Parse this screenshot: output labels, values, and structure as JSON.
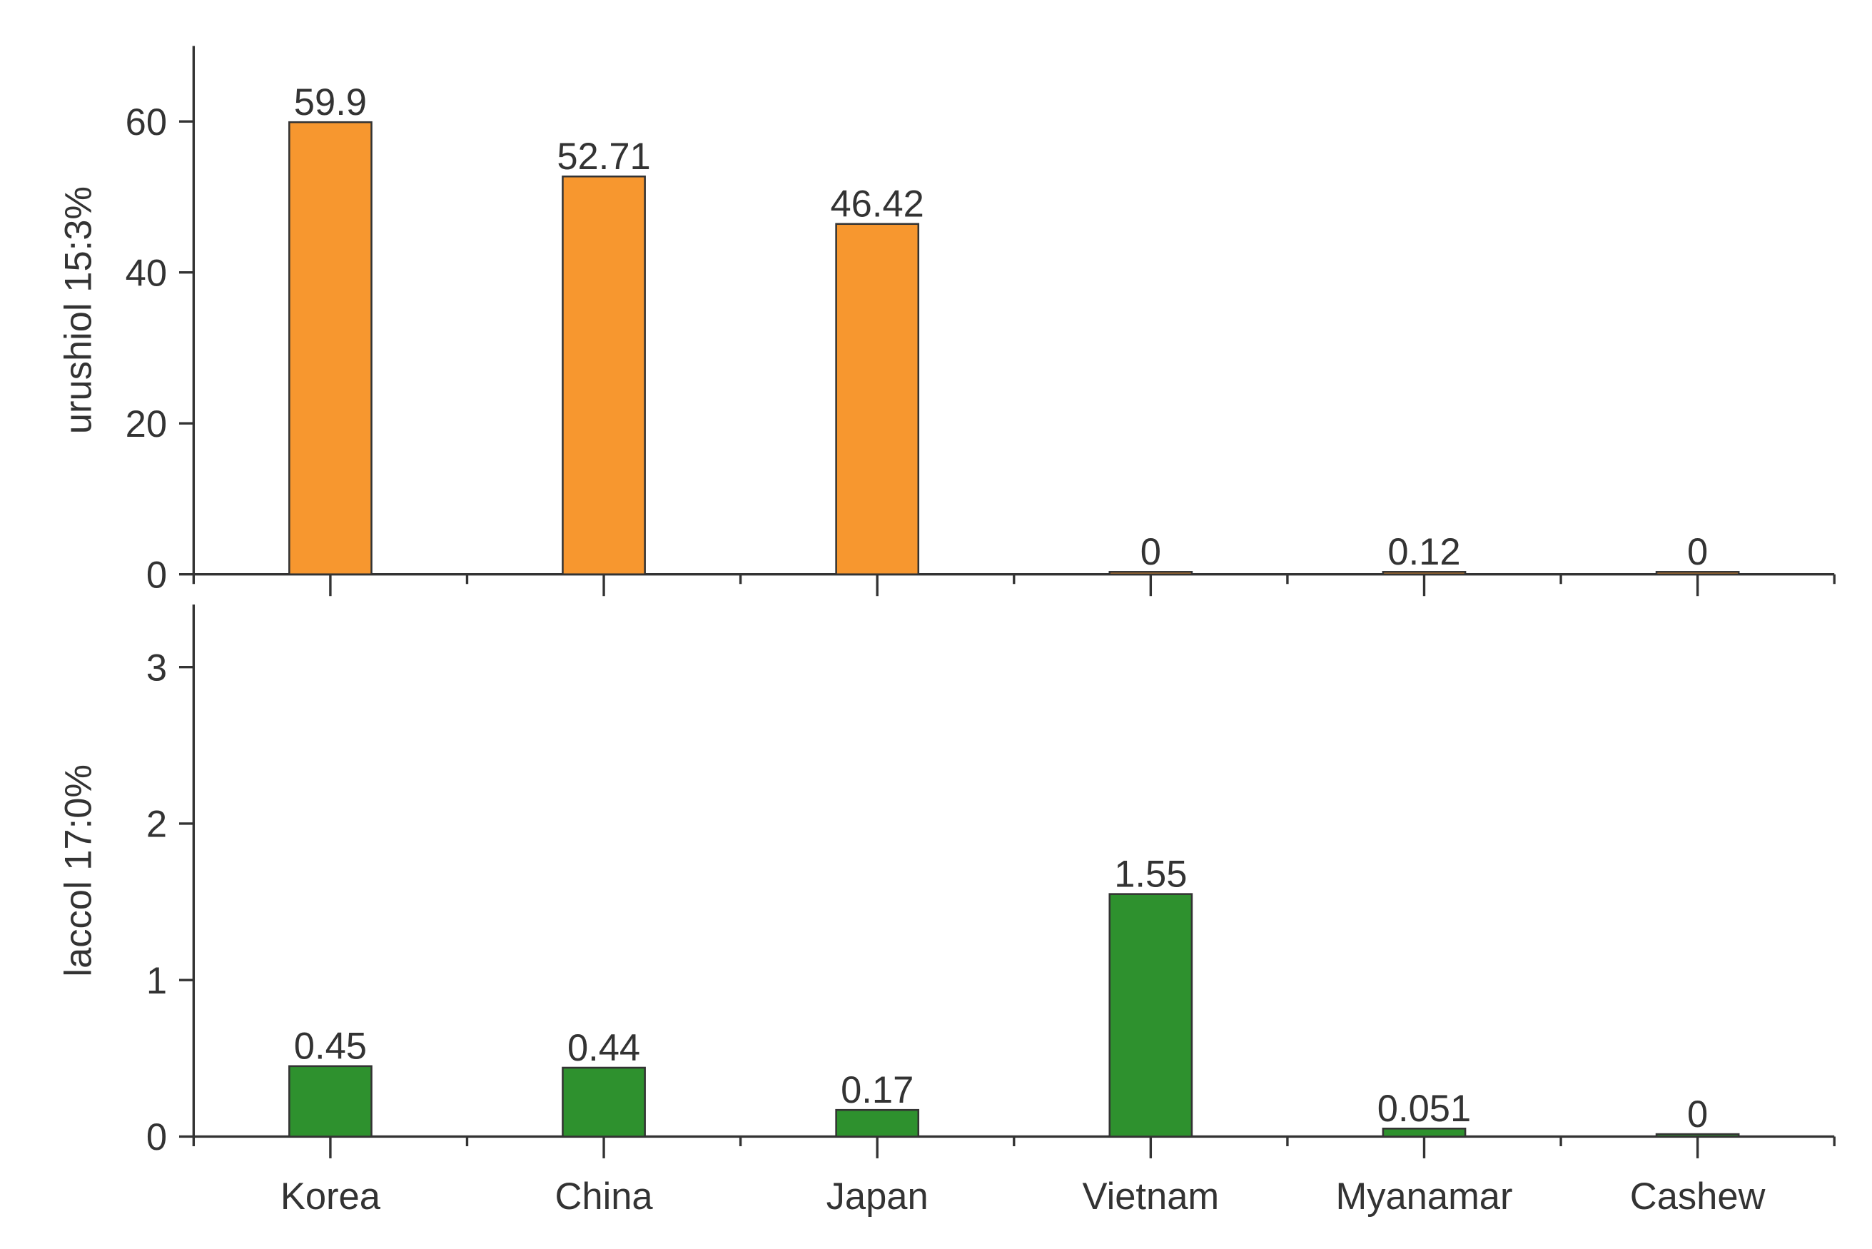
{
  "chart_data": [
    {
      "type": "bar",
      "y_label": "urushiol 15:3%",
      "values": [
        59.9,
        52.71,
        46.42,
        0,
        0.12,
        0
      ],
      "color": "#f7972f",
      "ylim": [
        0,
        70
      ],
      "yticks": [
        0,
        20,
        40,
        60
      ]
    },
    {
      "type": "bar",
      "y_label": "laccol 17:0%",
      "categories": [
        "Korea",
        "China",
        "Japan",
        "Vietnam",
        "Myanamar",
        "Cashew"
      ],
      "values": [
        0.45,
        0.44,
        0.17,
        1.55,
        0.051,
        0
      ],
      "color": "#2e912e",
      "ylim": [
        0,
        3.4
      ],
      "yticks": [
        0,
        1,
        2,
        3
      ]
    }
  ]
}
